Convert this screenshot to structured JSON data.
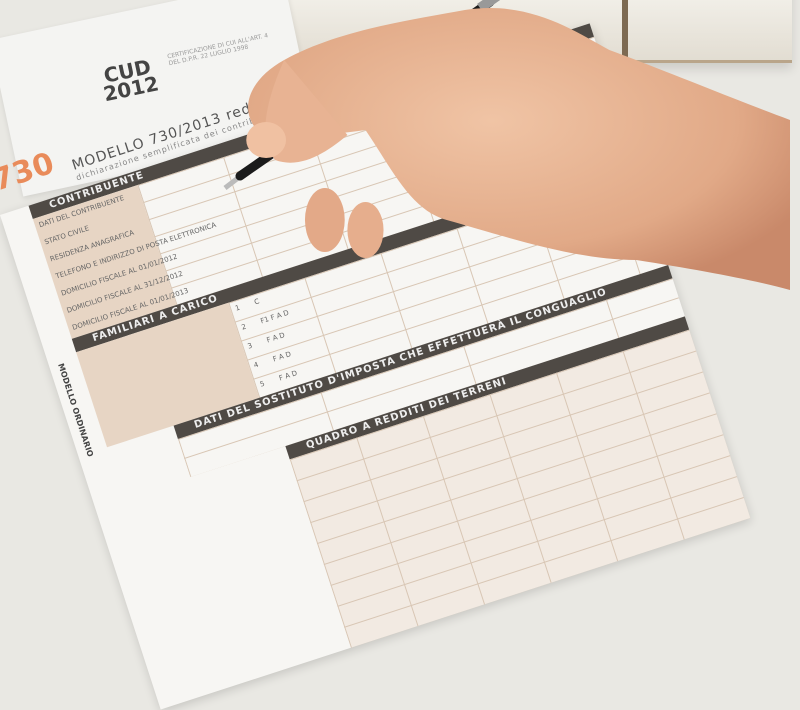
{
  "scene": {
    "colors": {
      "background": "#e9e8e3",
      "form_tan": "#e7d5c4",
      "form_band": "#4f4a45",
      "logo_orange": "#e98b5a",
      "skin": "#e7b594",
      "pen": "#1b1b1b"
    },
    "cud": {
      "logo_line1": "CUD",
      "logo_line2": "2012",
      "certification": "CERTIFICAZIONE DI CUI ALL'ART. 4 DEL D.P.R. 22 LUGLIO 1998"
    },
    "form": {
      "logo": "730",
      "title": "MODELLO 730/2013 redditi 2012",
      "subtitle": "dichiarazione semplificata dei contribuenti",
      "side_label": "MODELLO ORDINARIO",
      "sections": [
        "CONTRIBUENTE",
        "FAMILIARI A CARICO",
        "DATI DEL SOSTITUTO D'IMPOSTA CHE EFFETTUERÀ IL CONGUAGLIO",
        "QUADRO A REDDITI DEI TERRENI"
      ],
      "fields": [
        "DATI DEL CONTRIBUENTE",
        "STATO CIVILE",
        "RESIDENZA ANAGRAFICA",
        "TELEFONO E INDIRIZZO DI POSTA ELETTRONICA",
        "DOMICILIO FISCALE AL 01/01/2012",
        "DOMICILIO FISCALE AL 31/12/2012",
        "DOMICILIO FISCALE AL 01/01/2013"
      ],
      "family_rows": [
        "1",
        "2",
        "3",
        "4",
        "5"
      ],
      "family_codes": [
        "C",
        "F1 F A D",
        "F A D",
        "F A D",
        "F A D"
      ]
    }
  }
}
